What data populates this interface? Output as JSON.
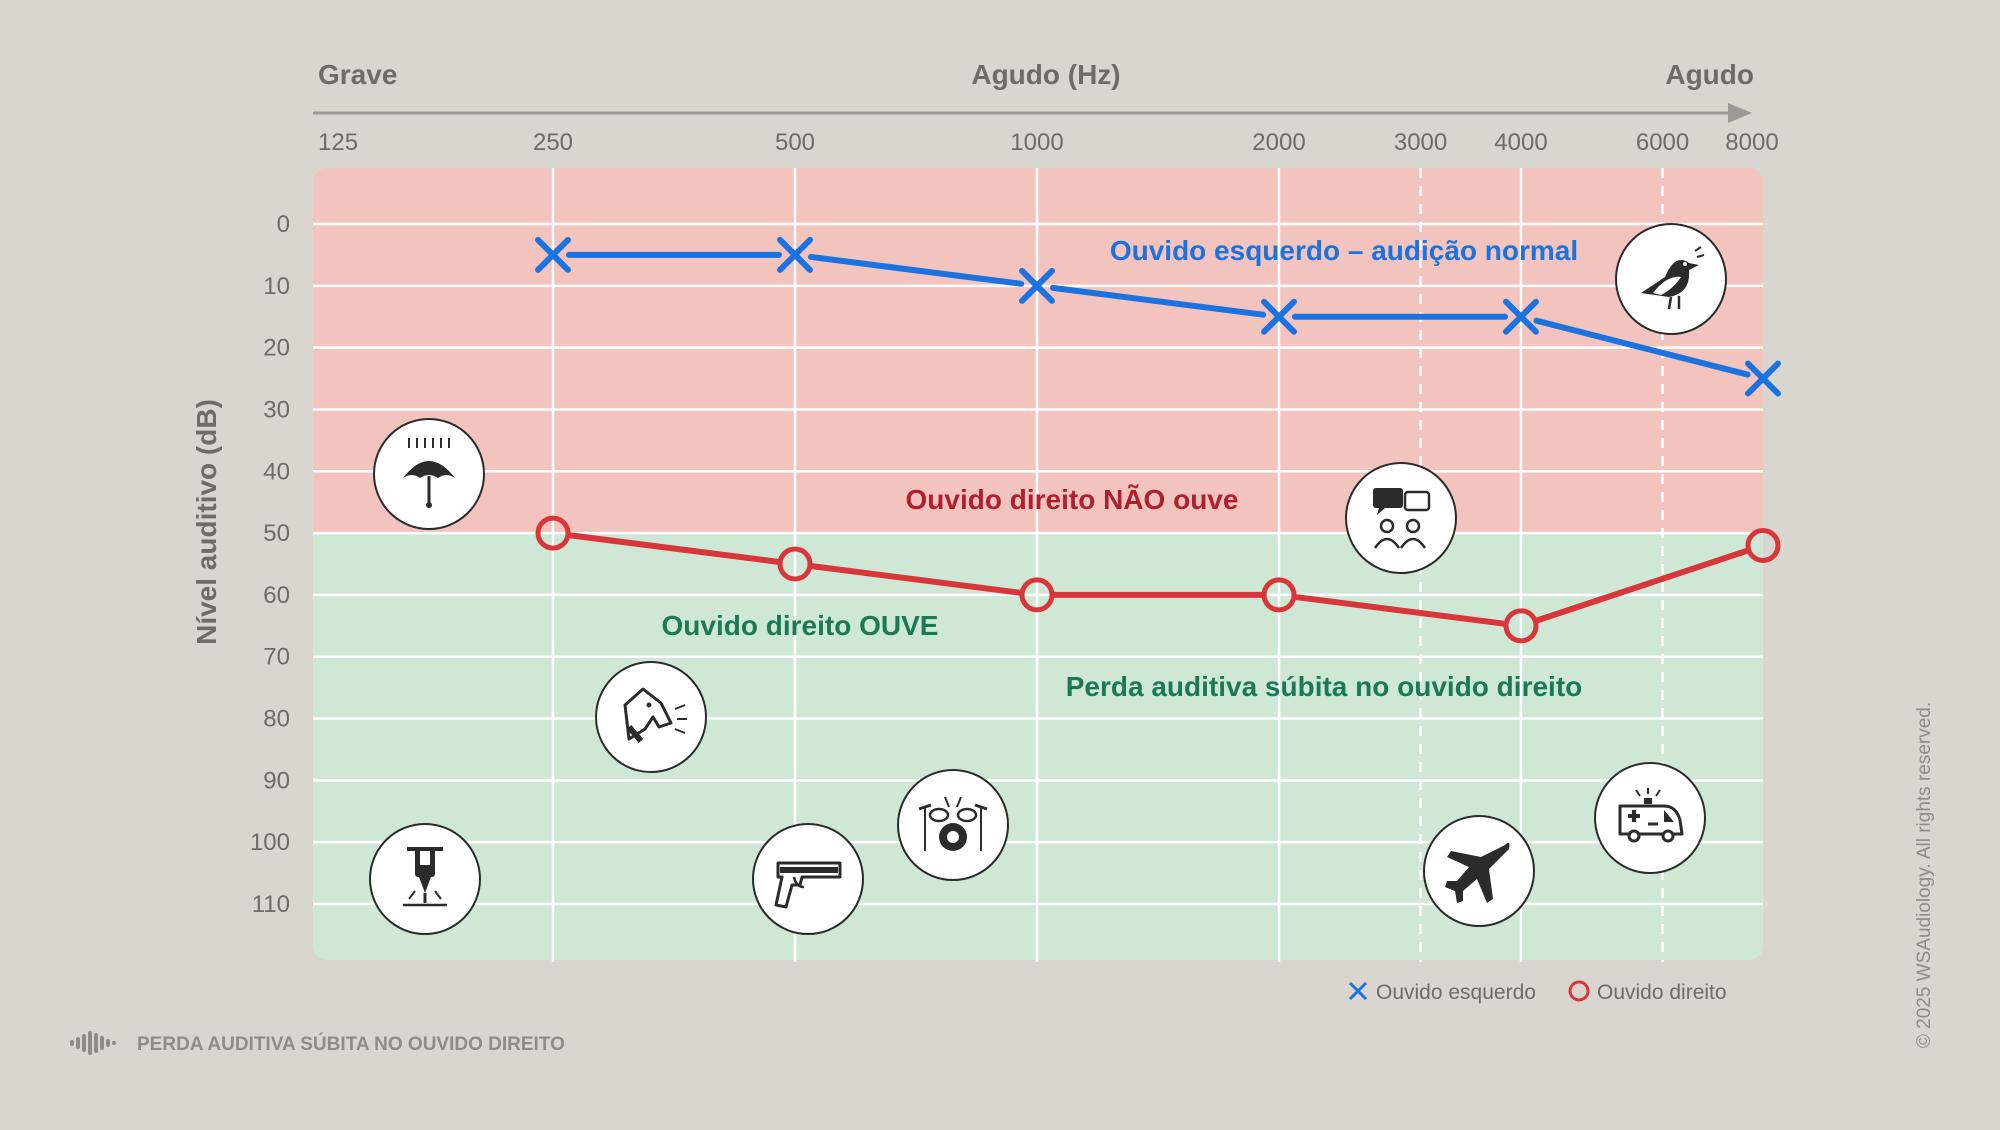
{
  "chart_data": {
    "type": "line",
    "x_scale": "log",
    "x_ticks": [
      125,
      250,
      500,
      1000,
      2000,
      3000,
      4000,
      6000,
      8000
    ],
    "x_tick_labels": [
      "125",
      "250",
      "500",
      "1000",
      "2000",
      "3000",
      "4000",
      "6000",
      "8000"
    ],
    "x_dashed_ticks": [
      3000,
      6000
    ],
    "y_ticks": [
      0,
      10,
      20,
      30,
      40,
      50,
      60,
      70,
      80,
      90,
      100,
      110
    ],
    "y_tick_labels": [
      "0",
      "10",
      "20",
      "30",
      "40",
      "50",
      "60",
      "70",
      "80",
      "90",
      "100",
      "110"
    ],
    "xlim": [
      125,
      8000
    ],
    "ylim": [
      -9,
      118
    ],
    "y_inverted": true,
    "ylabel": "Nível auditivo (dB)",
    "xaxis": {
      "left_label": "Grave",
      "center_label": "Agudo (Hz)",
      "right_label": "Agudo"
    },
    "regions": [
      {
        "name": "hearing-loss",
        "from": -9,
        "to": 50,
        "color": "#f2c4bd"
      },
      {
        "name": "hearing",
        "from": 50,
        "to": 118,
        "color": "#cfe8d6"
      }
    ],
    "grid": true,
    "series": [
      {
        "name": "Ouvido esquerdo",
        "marker": "x",
        "color": "#1a73e0",
        "x": [
          250,
          500,
          1000,
          2000,
          4000,
          8000
        ],
        "y": [
          5,
          5,
          10,
          15,
          15,
          25
        ]
      },
      {
        "name": "Ouvido direito",
        "marker": "o",
        "color": "#d9363b",
        "x": [
          250,
          500,
          1000,
          2000,
          4000,
          8000
        ],
        "y": [
          50,
          55,
          60,
          60,
          65,
          52
        ]
      }
    ],
    "annotations": [
      {
        "text": "Ouvido esquerdo – audição normal",
        "color": "#1a73e0"
      },
      {
        "text": "Ouvido direito NÃO ouve",
        "color": "#b01f2e"
      },
      {
        "text": "Ouvido direito OUVE",
        "color": "#1b7a55"
      },
      {
        "text": "Perda auditiva súbita no ouvido direito",
        "color": "#1b7a55"
      }
    ],
    "legend": {
      "placement": "bottom-right",
      "items": [
        {
          "label": "Ouvido esquerdo",
          "marker": "x",
          "color": "#1a73e0"
        },
        {
          "label": "Ouvido direito",
          "marker": "o",
          "color": "#d9363b"
        }
      ]
    },
    "icons": [
      {
        "name": "rain-umbrella-icon",
        "freq": 176,
        "db": 40
      },
      {
        "name": "bird-icon",
        "freq": 7000,
        "db": 9
      },
      {
        "name": "conversation-icon",
        "freq": 3000,
        "db": 47
      },
      {
        "name": "barking-dog-icon",
        "freq": 325,
        "db": 80
      },
      {
        "name": "jackhammer-icon",
        "freq": 175,
        "db": 105
      },
      {
        "name": "gun-icon",
        "freq": 510,
        "db": 104
      },
      {
        "name": "drum-kit-icon",
        "freq": 860,
        "db": 96
      },
      {
        "name": "airplane-icon",
        "freq": 3800,
        "db": 106
      },
      {
        "name": "ambulance-icon",
        "freq": 6180,
        "db": 97
      }
    ]
  },
  "footer": {
    "title": "PERDA AUDITIVA SÚBITA NO OUVIDO DIREITO",
    "copyright": "© 2025 WSAudiology. All rights reserved."
  },
  "colors": {
    "background": "#d9d6d0",
    "axis_text": "#6e6c68",
    "grid": "#ffffff"
  }
}
